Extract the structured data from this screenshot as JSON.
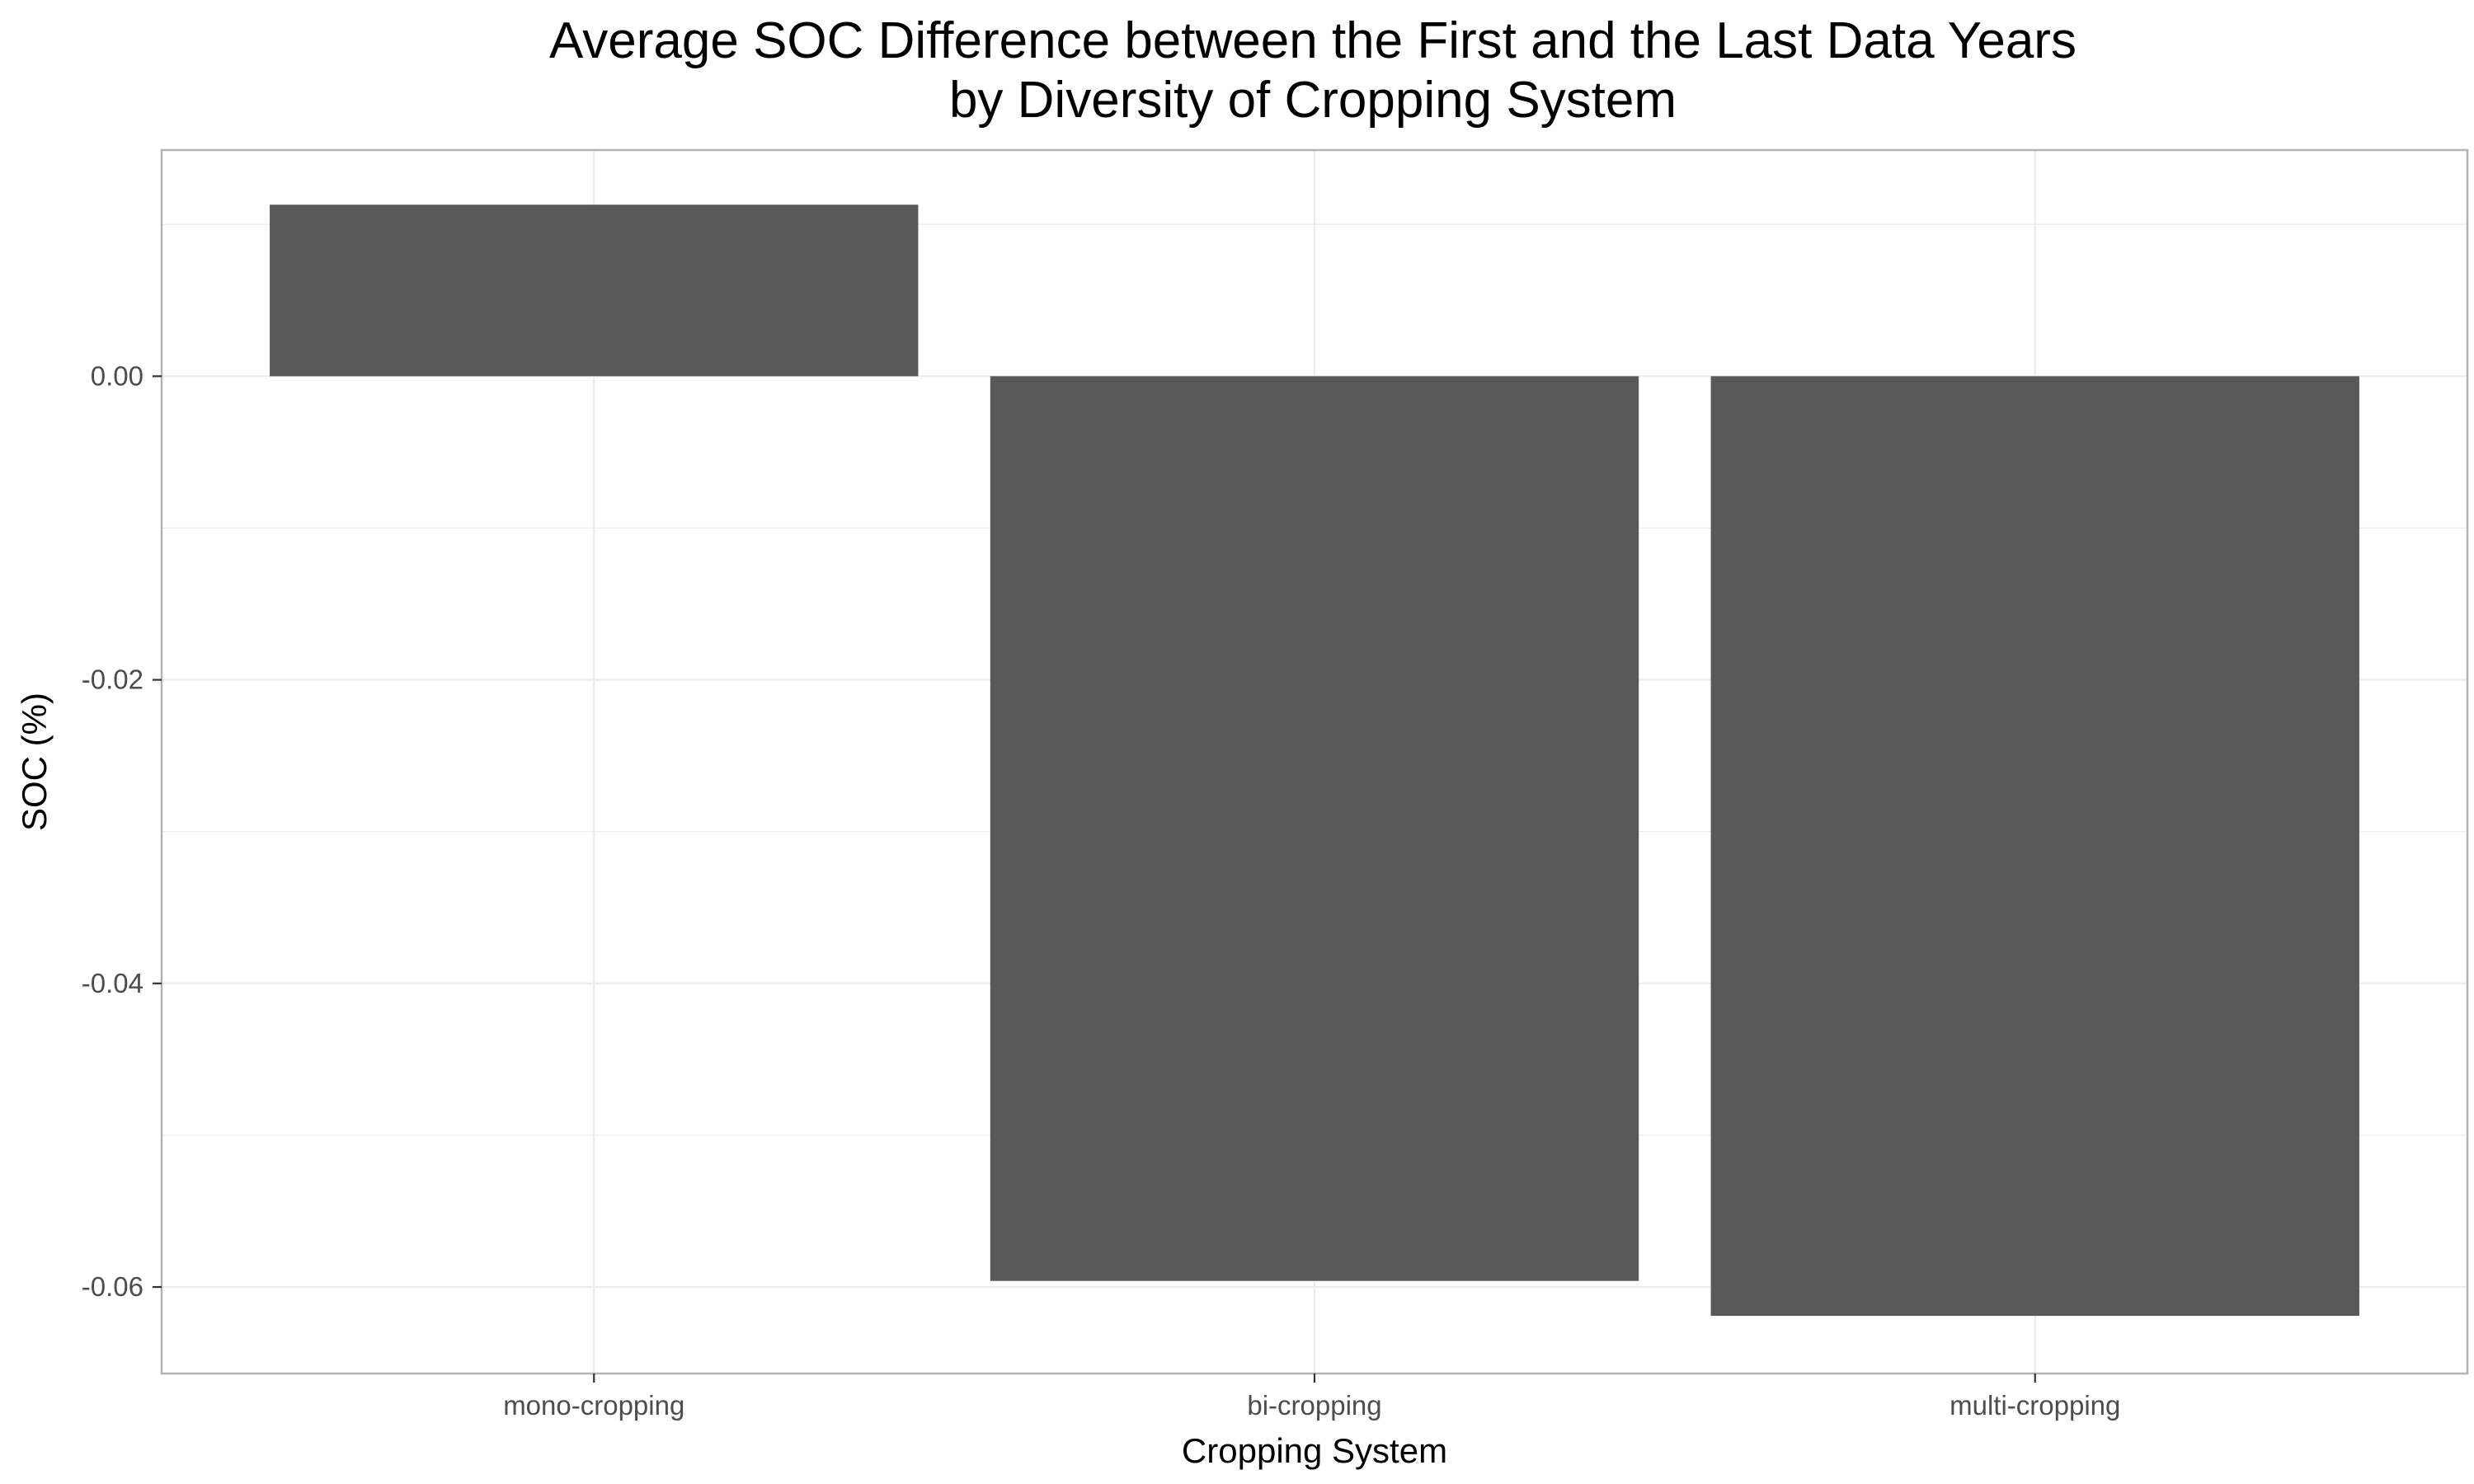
{
  "chart_data": {
    "type": "bar",
    "title_lines": [
      "Average SOC Difference between the First and the Last Data Years",
      "by Diversity of Cropping System"
    ],
    "xlabel": "Cropping System",
    "ylabel": "SOC (%)",
    "categories": [
      "mono-cropping",
      "bi-cropping",
      "multi-cropping"
    ],
    "values": [
      0.0113,
      -0.0596,
      -0.0619
    ],
    "ylim": [
      -0.0657,
      0.0149
    ],
    "y_ticks": [
      0.0,
      -0.02,
      -0.04,
      -0.06
    ],
    "y_tick_labels": [
      "0.00",
      "-0.02",
      "-0.04",
      "-0.06"
    ],
    "grid": true,
    "bar_color": "#595959",
    "grid_color": "#ebebeb",
    "panel_border_color": "#b3b3b3"
  }
}
